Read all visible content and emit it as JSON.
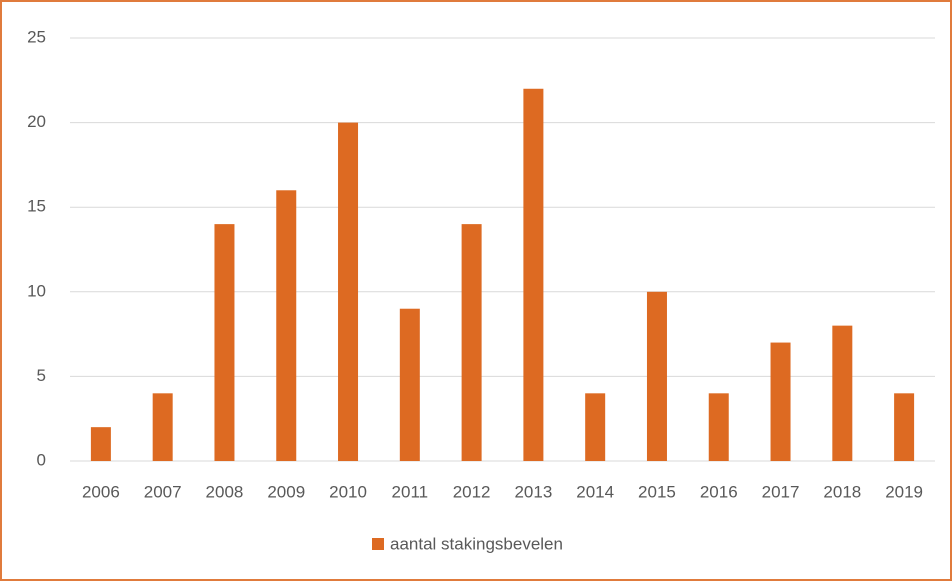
{
  "chart_data": {
    "type": "bar",
    "categories": [
      "2006",
      "2007",
      "2008",
      "2009",
      "2010",
      "2011",
      "2012",
      "2013",
      "2014",
      "2015",
      "2016",
      "2017",
      "2018",
      "2019"
    ],
    "series": [
      {
        "name": "aantal stakingsbevelen",
        "color": "#dd6a22",
        "values": [
          2,
          4,
          14,
          16,
          20,
          9,
          14,
          22,
          4,
          10,
          4,
          7,
          8,
          4
        ]
      }
    ],
    "ylim": [
      0,
      25
    ],
    "yticks": [
      0,
      5,
      10,
      15,
      20,
      25
    ],
    "grid": true,
    "legend": "bottom"
  }
}
